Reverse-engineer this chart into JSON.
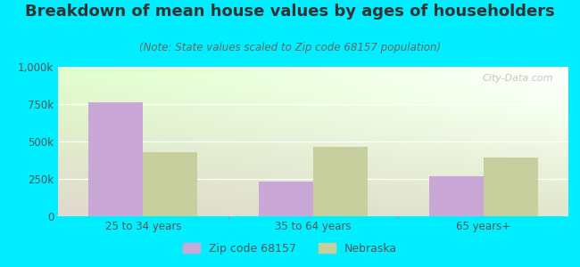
{
  "title": "Breakdown of mean house values by ages of householders",
  "subtitle": "(Note: State values scaled to Zip code 68157 population)",
  "categories": [
    "25 to 34 years",
    "35 to 64 years",
    "65 years+"
  ],
  "zip_values": [
    760000,
    230000,
    265000
  ],
  "nebraska_values": [
    430000,
    465000,
    390000
  ],
  "zip_color": "#c9a8d8",
  "nebraska_color": "#c8cf9e",
  "background_outer": "#00eeff",
  "ylim": [
    0,
    1000000
  ],
  "yticks": [
    0,
    250000,
    500000,
    750000,
    1000000
  ],
  "ytick_labels": [
    "0",
    "250k",
    "500k",
    "750k",
    "1,000k"
  ],
  "legend_zip_label": "Zip code 68157",
  "legend_nebraska_label": "Nebraska",
  "title_fontsize": 13,
  "subtitle_fontsize": 8.5,
  "tick_fontsize": 8.5,
  "legend_fontsize": 9,
  "watermark": "City-Data.com"
}
